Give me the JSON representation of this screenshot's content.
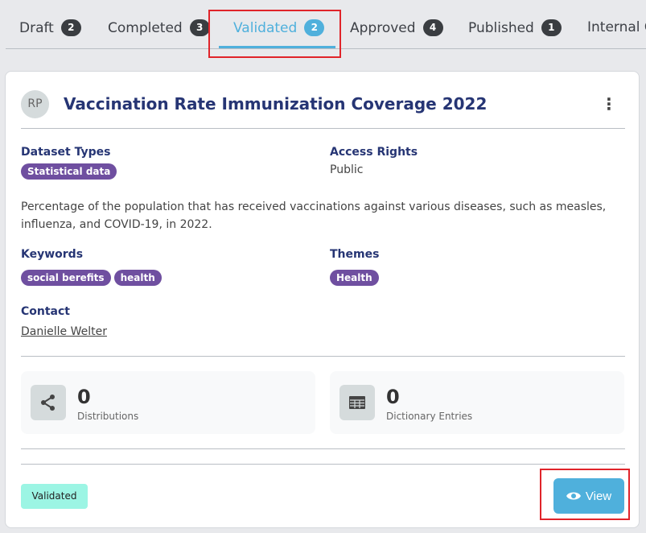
{
  "tabs": [
    {
      "label": "Draft",
      "count": "2"
    },
    {
      "label": "Completed",
      "count": "3"
    },
    {
      "label": "Validated",
      "count": "2",
      "active": true
    },
    {
      "label": "Approved",
      "count": "4"
    },
    {
      "label": "Published",
      "count": "1"
    },
    {
      "label": "Internal C"
    }
  ],
  "card": {
    "avatar": "RP",
    "title": "Vaccination Rate Immunization Coverage 2022",
    "dataset_types_label": "Dataset Types",
    "dataset_types": [
      "Statistical data"
    ],
    "access_rights_label": "Access Rights",
    "access_rights": "Public",
    "description": "Percentage of the population that has received vaccinations against various diseases, such as measles, influenza, and COVID-19, in 2022.",
    "keywords_label": "Keywords",
    "keywords": [
      "social berefits",
      "health"
    ],
    "themes_label": "Themes",
    "themes": [
      "Health"
    ],
    "contact_label": "Contact",
    "contact": "Danielle Welter",
    "stats": [
      {
        "value": "0",
        "label": "Distributions",
        "icon": "share-icon"
      },
      {
        "value": "0",
        "label": "Dictionary Entries",
        "icon": "table-icon"
      }
    ],
    "status": "Validated",
    "view_label": "View"
  },
  "colors": {
    "accent": "#4fb0dc",
    "chip": "#6f4fa0",
    "title": "#263574",
    "status": "#9cf5e4",
    "highlight": "#e0242a"
  }
}
